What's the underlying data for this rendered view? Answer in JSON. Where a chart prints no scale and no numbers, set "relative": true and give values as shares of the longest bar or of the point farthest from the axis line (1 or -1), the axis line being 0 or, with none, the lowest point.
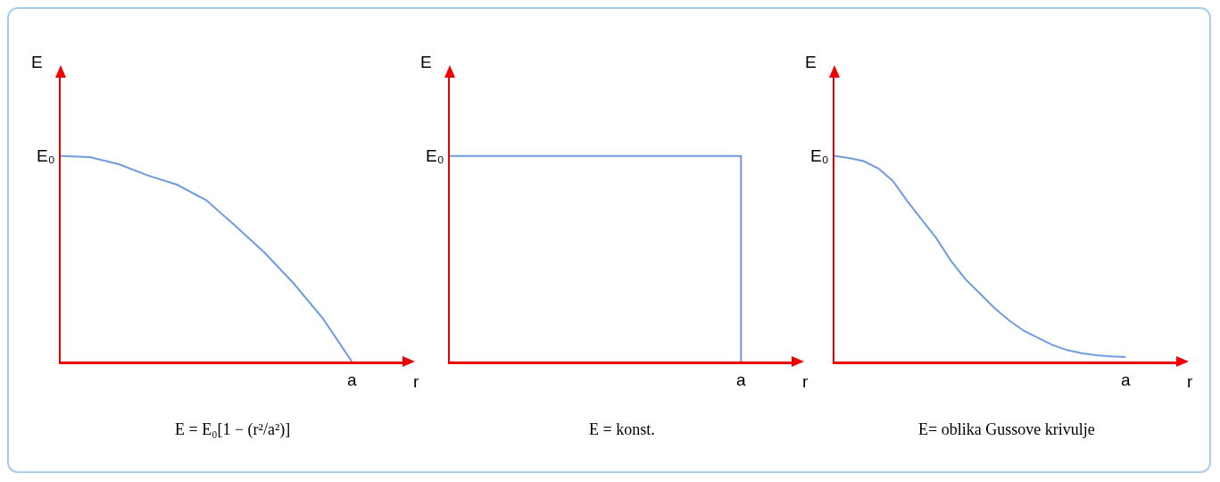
{
  "chart_data": [
    {
      "type": "line",
      "relative": true,
      "xlabel": "r",
      "ylabel": "E",
      "color": "#6f9be0",
      "categories": [
        null,
        null,
        null,
        null,
        null,
        null,
        null,
        null,
        null,
        null,
        null
      ],
      "values": [
        1,
        0.995,
        0.96,
        0.905,
        0.86,
        0.785,
        0.66,
        0.53,
        0.38,
        0.21,
        0
      ],
      "annotations": [
        "E₀",
        "a",
        "E = E₀[1 − (r²/a²)]"
      ]
    },
    {
      "type": "step",
      "relative": true,
      "xlabel": "r",
      "ylabel": "E",
      "color": "#6f9be0",
      "categories": [
        null,
        null,
        null,
        null,
        null,
        null,
        null,
        null,
        null,
        null,
        null
      ],
      "values": [
        1,
        1,
        1,
        1,
        1,
        1,
        1,
        1,
        1,
        1,
        0
      ],
      "annotations": [
        "E₀",
        "a",
        "E = konst."
      ]
    },
    {
      "type": "line",
      "relative": true,
      "xlabel": "r",
      "ylabel": "E",
      "color": "#6f9be0",
      "categories": [
        null,
        null,
        null,
        null,
        null,
        null,
        null,
        null,
        null,
        null,
        null,
        null,
        null,
        null,
        null,
        null,
        null,
        null,
        null,
        null,
        null
      ],
      "values": [
        1,
        0.99,
        0.975,
        0.94,
        0.88,
        0.78,
        0.69,
        0.6,
        0.49,
        0.4,
        0.33,
        0.26,
        0.2,
        0.15,
        0.115,
        0.08,
        0.055,
        0.04,
        0.03,
        0.025,
        0.022
      ],
      "annotations": [
        "E₀",
        "a",
        "E= oblika Gussove krivulje"
      ]
    }
  ]
}
